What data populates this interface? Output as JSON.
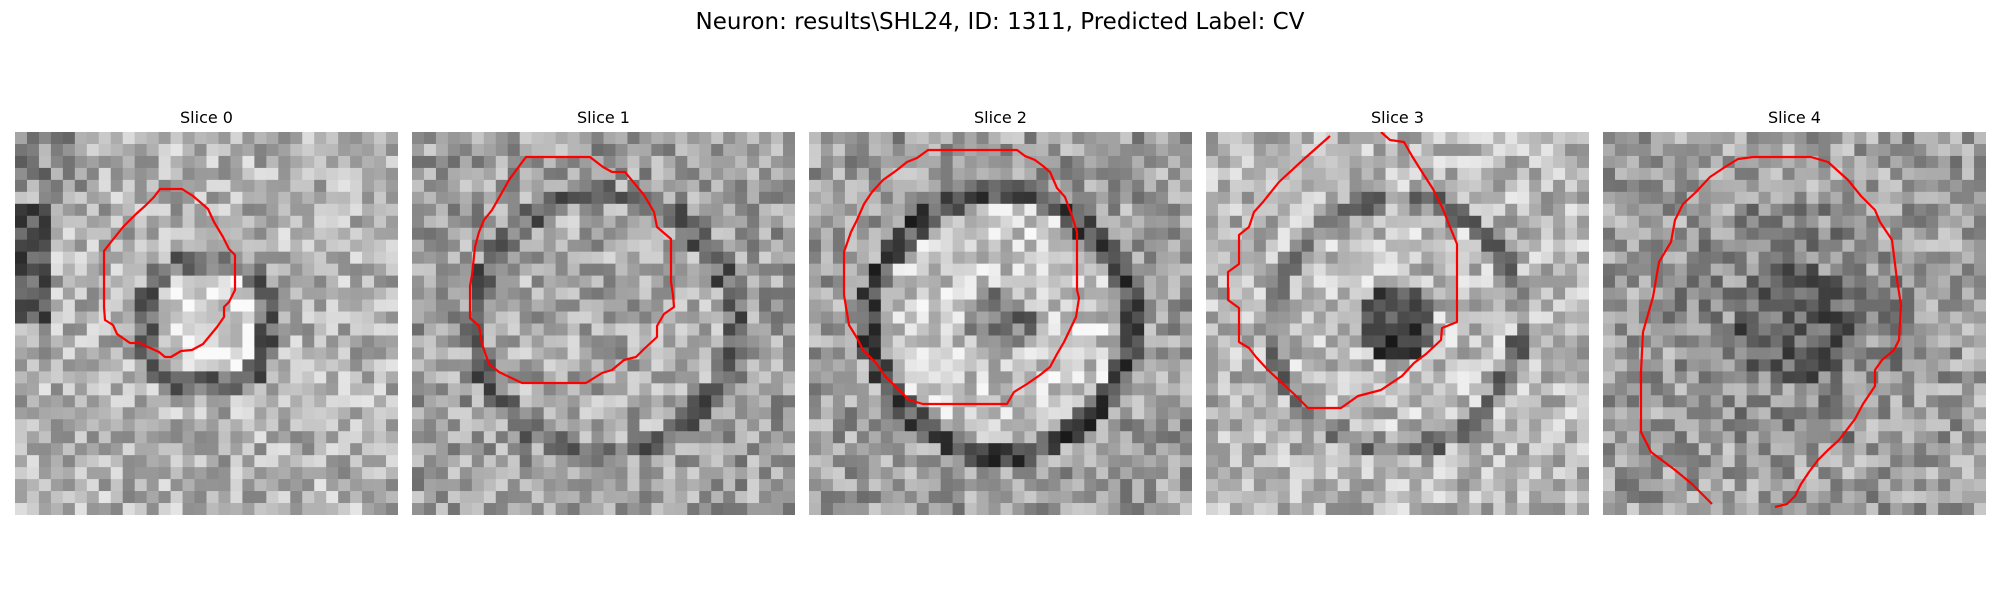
{
  "figure": {
    "title": "Neuron: results\\SHL24, ID: 1311, Predicted Label: CV"
  },
  "panels": [
    {
      "title": "Slice 0"
    },
    {
      "title": "Slice 1"
    },
    {
      "title": "Slice 2"
    },
    {
      "title": "Slice 3"
    },
    {
      "title": "Slice 4"
    }
  ],
  "colors": {
    "contour": "#ff0000",
    "background": "#ffffff"
  }
}
